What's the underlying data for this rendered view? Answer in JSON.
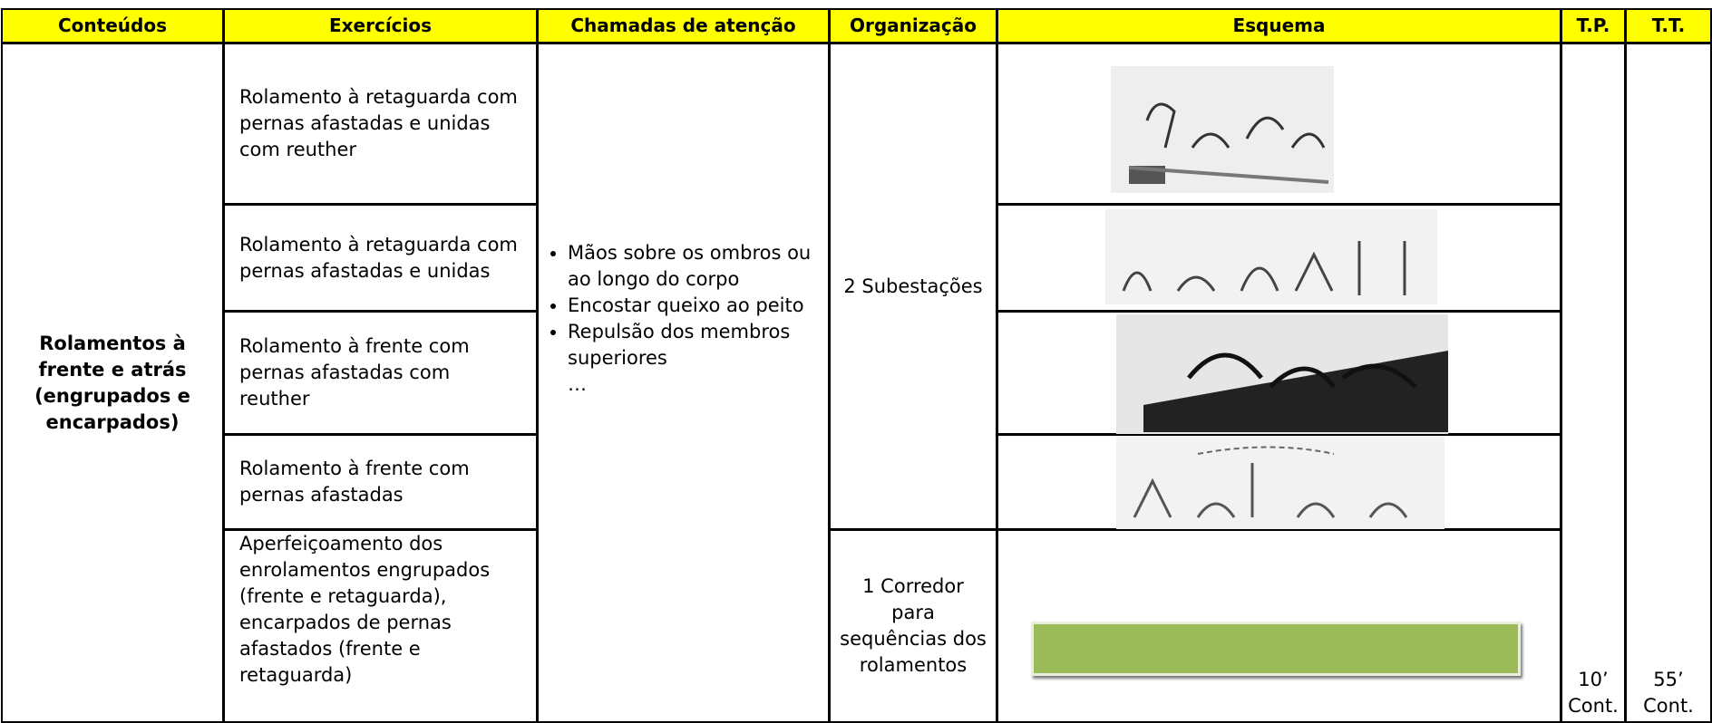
{
  "header": {
    "columns": [
      "Conteúdos",
      "Exercícios",
      "Chamadas de atenção",
      "Organização",
      "Esquema",
      "T.P.",
      "T.T."
    ]
  },
  "content": "Rolamentos à frente e atrás (engrupados e encarpados)",
  "exercises": [
    "Rolamento à retaguarda com pernas afastadas e unidas com reuther",
    "Rolamento à retaguarda com pernas afastadas e unidas",
    "Rolamento à frente com pernas afastadas com reuther",
    "Rolamento à frente com pernas afastadas",
    "Aperfeiçoamento dos enrolamentos engrupados (frente e retaguarda), encarpados de pernas afastados (frente e retaguarda)"
  ],
  "attention": {
    "items": [
      "Mãos sobre os ombros ou ao longo do corpo",
      "Encostar queixo ao peito",
      "Repulsão dos membros superiores"
    ],
    "more": "…"
  },
  "organization": [
    "2 Subestações",
    "1 Corredor para sequências dos rolamentos"
  ],
  "tp": "10’ Cont.",
  "tt": "55’ Cont."
}
